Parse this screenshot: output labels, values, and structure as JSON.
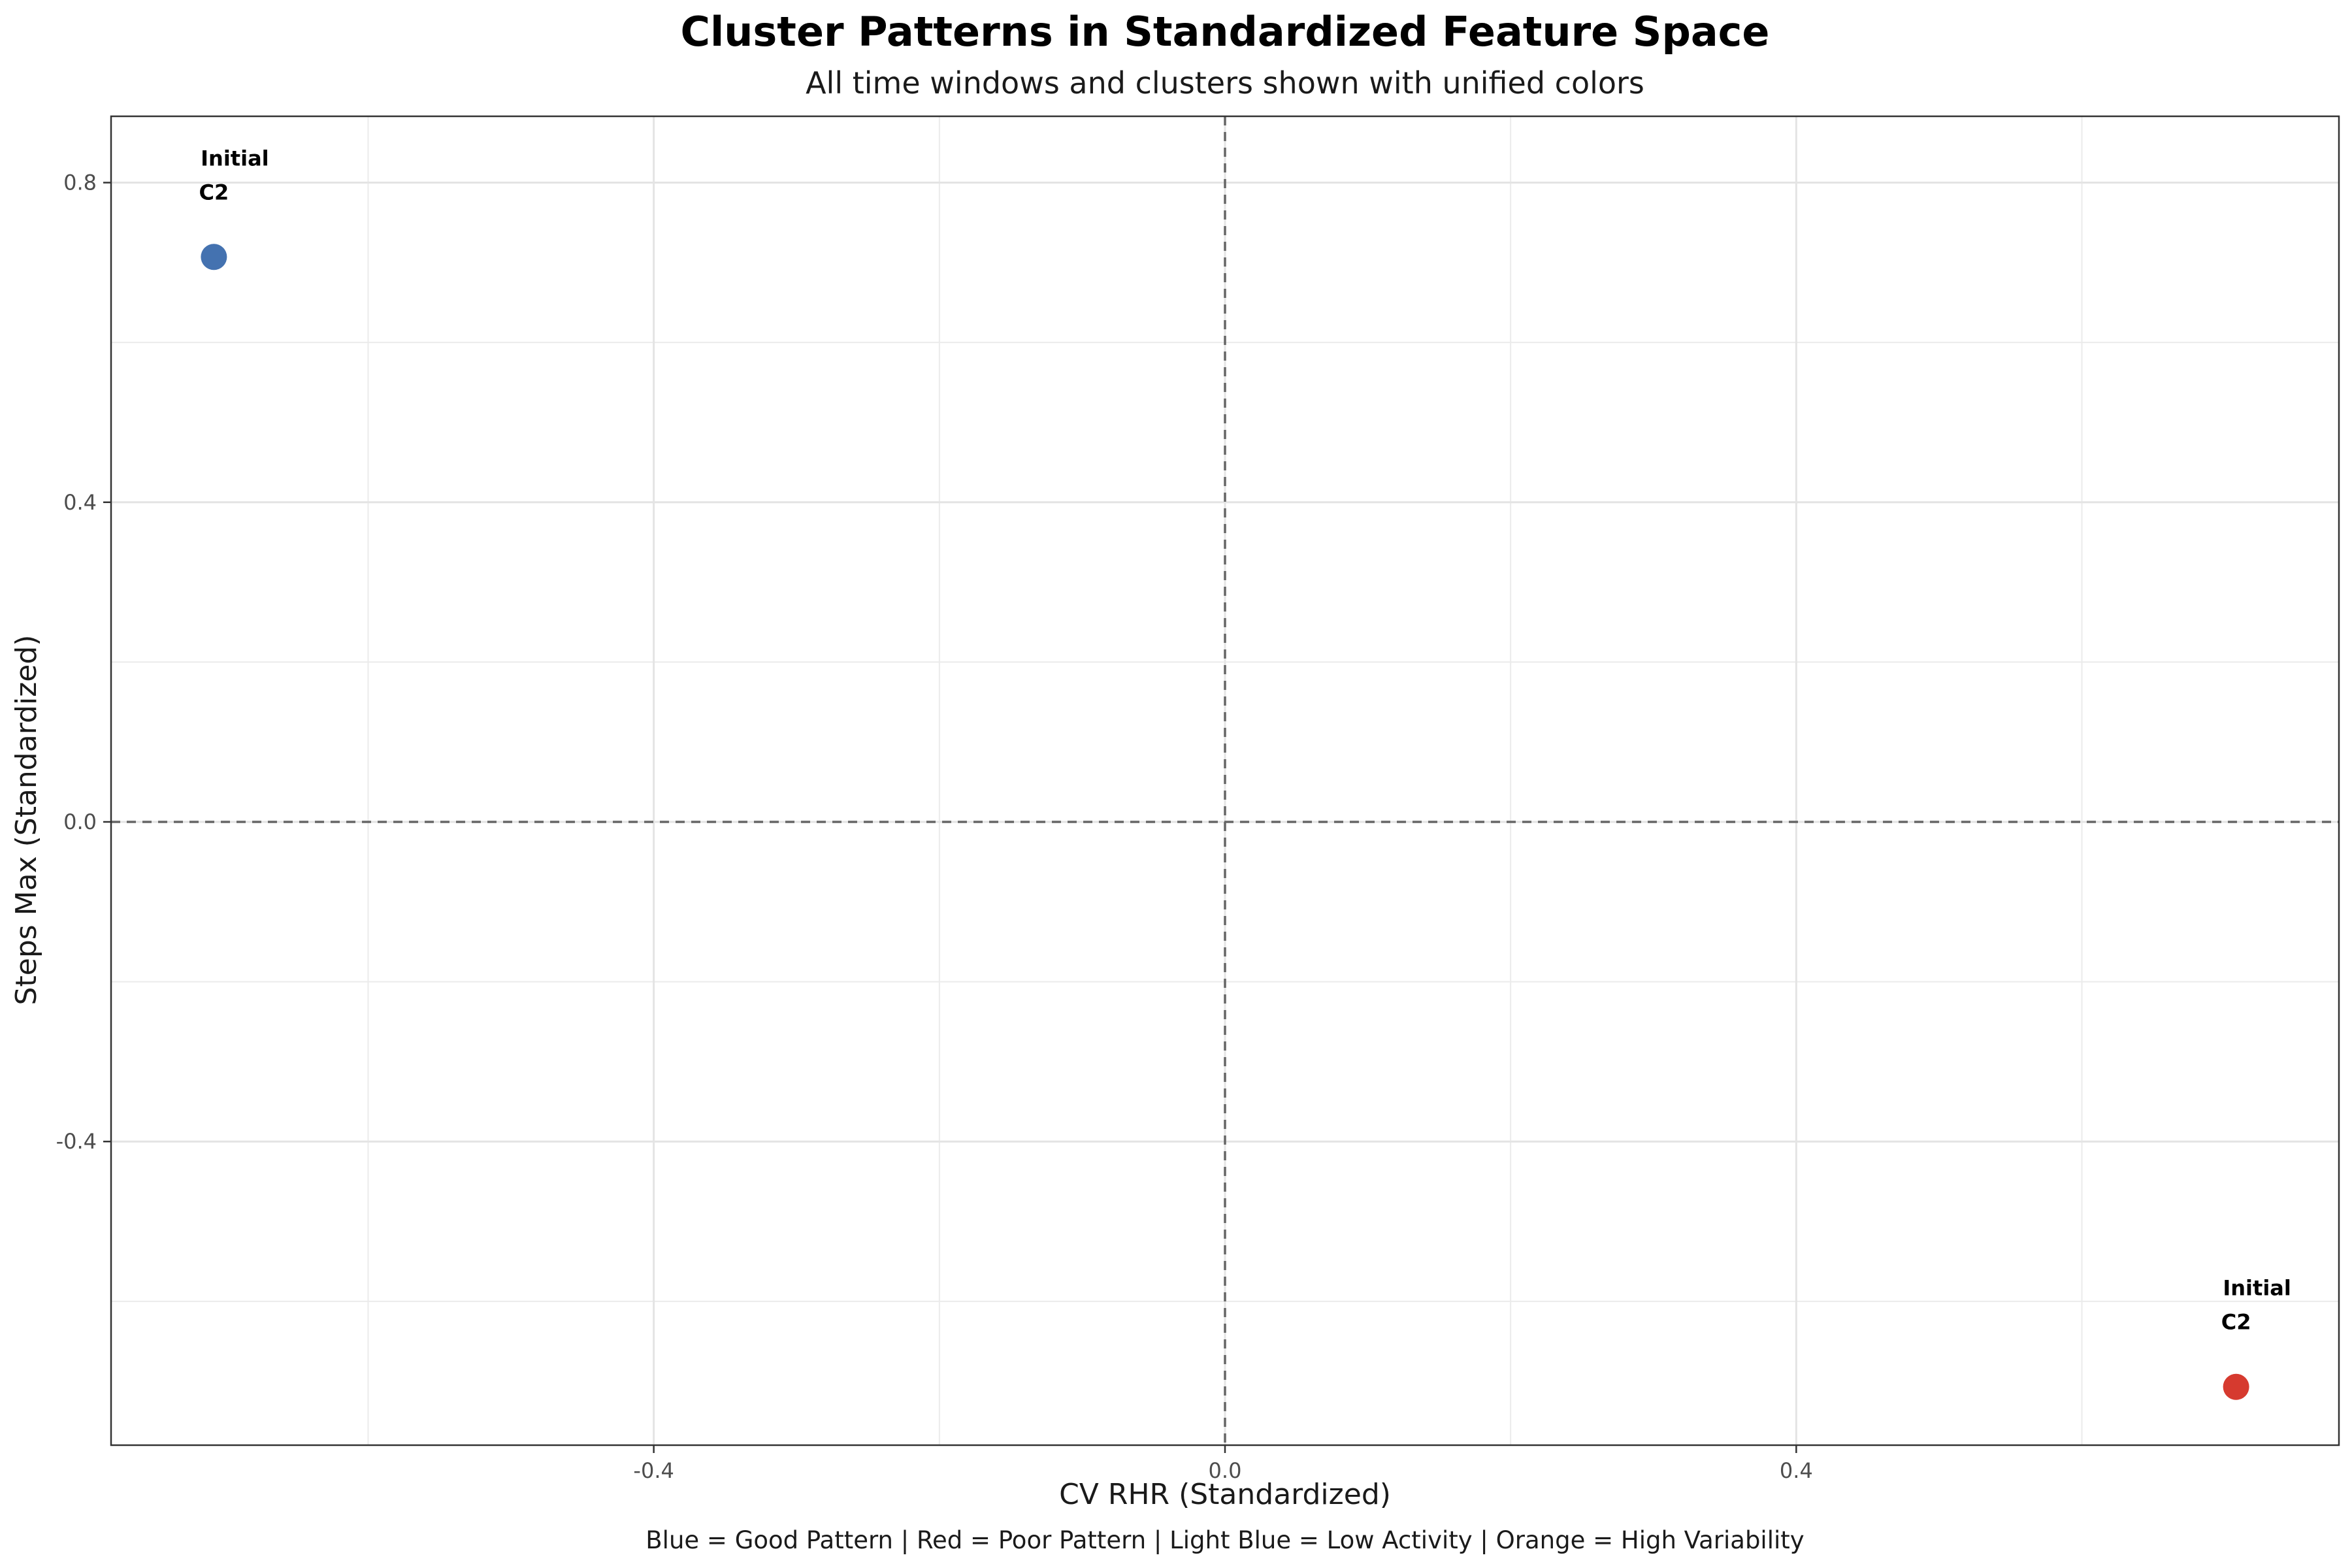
{
  "chart_data": {
    "type": "scatter",
    "title": "Cluster Patterns in Standardized Feature Space",
    "subtitle": "All time windows and clusters shown with unified colors",
    "xlabel": "CV RHR (Standardized)",
    "ylabel": "Steps Max (Standardized)",
    "caption": "Blue = Good Pattern | Red = Poor Pattern | Light Blue = Low Activity | Orange = High Variability",
    "xlim": [
      -0.78,
      0.78
    ],
    "ylim": [
      -0.78,
      0.883
    ],
    "x_ticks": [
      {
        "value": -0.4,
        "label": "-0.4"
      },
      {
        "value": 0.0,
        "label": "0.0"
      },
      {
        "value": 0.4,
        "label": "0.4"
      }
    ],
    "y_ticks": [
      {
        "value": -0.4,
        "label": "-0.4"
      },
      {
        "value": 0.0,
        "label": "0.0"
      },
      {
        "value": 0.4,
        "label": "0.4"
      },
      {
        "value": 0.8,
        "label": "0.8"
      }
    ],
    "reference_lines": {
      "x": 0.0,
      "y": 0.0
    },
    "grid": true,
    "points": [
      {
        "x": -0.708,
        "y": 0.707,
        "color": "#4472b0",
        "cluster_label": "C2",
        "window_label": "Initial"
      },
      {
        "x": 0.708,
        "y": -0.707,
        "color": "#d63a2f",
        "cluster_label": "C2",
        "window_label": "Initial"
      }
    ]
  }
}
